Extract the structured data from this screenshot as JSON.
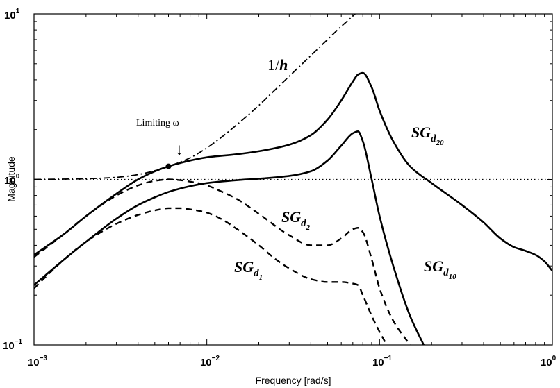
{
  "chart_data": {
    "type": "line",
    "xlabel": "Frequency [rad/s]",
    "ylabel": "Magnitude",
    "xscale": "log",
    "yscale": "log",
    "xlim": [
      0.001,
      1
    ],
    "ylim": [
      0.1,
      10
    ],
    "grid": false,
    "x_ticks": [
      {
        "base": "10",
        "exp": "−3",
        "value": 0.001
      },
      {
        "base": "10",
        "exp": "−2",
        "value": 0.01
      },
      {
        "base": "10",
        "exp": "−1",
        "value": 0.1
      },
      {
        "base": "10",
        "exp": "0",
        "value": 1
      }
    ],
    "y_ticks": [
      {
        "base": "10",
        "exp": "−1",
        "value": 0.1
      },
      {
        "base": "10",
        "exp": "0",
        "value": 1
      },
      {
        "base": "10",
        "exp": "1",
        "value": 10
      }
    ],
    "series": [
      {
        "key": "inv_h",
        "style": "dashdot",
        "color": "#000000",
        "x": [
          0.001,
          0.002,
          0.003,
          0.004,
          0.005,
          0.006,
          0.008,
          0.01,
          0.012,
          0.015,
          0.02,
          0.025,
          0.03,
          0.04,
          0.05,
          0.06,
          0.07,
          0.08
        ],
        "y": [
          1.0,
          1.01,
          1.03,
          1.07,
          1.13,
          1.2,
          1.35,
          1.55,
          1.78,
          2.15,
          2.8,
          3.5,
          4.2,
          5.6,
          7.0,
          8.4,
          9.7,
          11.2
        ]
      },
      {
        "key": "SGd20",
        "style": "solid",
        "color": "#000000",
        "x": [
          0.001,
          0.0015,
          0.002,
          0.003,
          0.004,
          0.005,
          0.006,
          0.008,
          0.01,
          0.015,
          0.02,
          0.03,
          0.04,
          0.05,
          0.06,
          0.07,
          0.075,
          0.08,
          0.09,
          0.1,
          0.12,
          0.15,
          0.2,
          0.3,
          0.4,
          0.5,
          0.6,
          0.7,
          0.8,
          0.9,
          1.0
        ],
        "y": [
          0.35,
          0.47,
          0.6,
          0.82,
          1.0,
          1.12,
          1.2,
          1.3,
          1.36,
          1.42,
          1.48,
          1.62,
          1.85,
          2.3,
          3.0,
          3.9,
          4.3,
          4.4,
          3.6,
          2.6,
          1.7,
          1.2,
          0.95,
          0.7,
          0.55,
          0.44,
          0.39,
          0.37,
          0.35,
          0.32,
          0.28
        ]
      },
      {
        "key": "SGd10",
        "style": "solid",
        "color": "#000000",
        "x": [
          0.001,
          0.0015,
          0.002,
          0.003,
          0.004,
          0.005,
          0.006,
          0.008,
          0.01,
          0.015,
          0.02,
          0.03,
          0.04,
          0.05,
          0.06,
          0.07,
          0.075,
          0.08,
          0.09,
          0.1,
          0.12,
          0.15,
          0.18
        ],
        "y": [
          0.23,
          0.33,
          0.42,
          0.58,
          0.7,
          0.78,
          0.84,
          0.91,
          0.95,
          0.99,
          1.01,
          1.05,
          1.12,
          1.3,
          1.6,
          1.9,
          1.95,
          1.7,
          1.0,
          0.6,
          0.3,
          0.15,
          0.1
        ]
      },
      {
        "key": "SGd2",
        "style": "dashed",
        "color": "#000000",
        "x": [
          0.001,
          0.0015,
          0.002,
          0.003,
          0.004,
          0.005,
          0.006,
          0.007,
          0.008,
          0.01,
          0.012,
          0.015,
          0.02,
          0.03,
          0.04,
          0.05,
          0.06,
          0.07,
          0.075,
          0.08,
          0.09,
          0.1,
          0.12,
          0.15
        ],
        "y": [
          0.34,
          0.47,
          0.6,
          0.8,
          0.92,
          0.98,
          1.0,
          0.99,
          0.97,
          0.92,
          0.85,
          0.76,
          0.62,
          0.46,
          0.4,
          0.4,
          0.44,
          0.5,
          0.51,
          0.48,
          0.33,
          0.22,
          0.14,
          0.1
        ]
      },
      {
        "key": "SGd1",
        "style": "dashed",
        "color": "#000000",
        "x": [
          0.001,
          0.0015,
          0.002,
          0.003,
          0.004,
          0.005,
          0.006,
          0.007,
          0.008,
          0.01,
          0.012,
          0.015,
          0.02,
          0.025,
          0.03,
          0.04,
          0.05,
          0.06,
          0.07,
          0.075,
          0.08,
          0.09,
          0.1,
          0.11
        ],
        "y": [
          0.22,
          0.33,
          0.42,
          0.54,
          0.61,
          0.65,
          0.67,
          0.67,
          0.66,
          0.63,
          0.58,
          0.5,
          0.4,
          0.33,
          0.29,
          0.25,
          0.24,
          0.24,
          0.235,
          0.23,
          0.2,
          0.15,
          0.12,
          0.1
        ]
      },
      {
        "key": "unity",
        "style": "dotted",
        "color": "#000000",
        "x": [
          0.001,
          1.0
        ],
        "y": [
          1.0,
          1.0
        ]
      }
    ],
    "marker": {
      "x": 0.006,
      "y": 1.2
    },
    "annotations": {
      "limiting": "Limiting ω",
      "arrow": "↓",
      "inv_h": {
        "pre": "1/",
        "var": "h"
      },
      "SGd20": {
        "main": "SG",
        "sub": "d",
        "subsub": "20"
      },
      "SGd10": {
        "main": "SG",
        "sub": "d",
        "subsub": "10"
      },
      "SGd2": {
        "main": "SG",
        "sub": "d",
        "subsub": "2"
      },
      "SGd1": {
        "main": "SG",
        "sub": "d",
        "subsub": "1"
      }
    }
  }
}
